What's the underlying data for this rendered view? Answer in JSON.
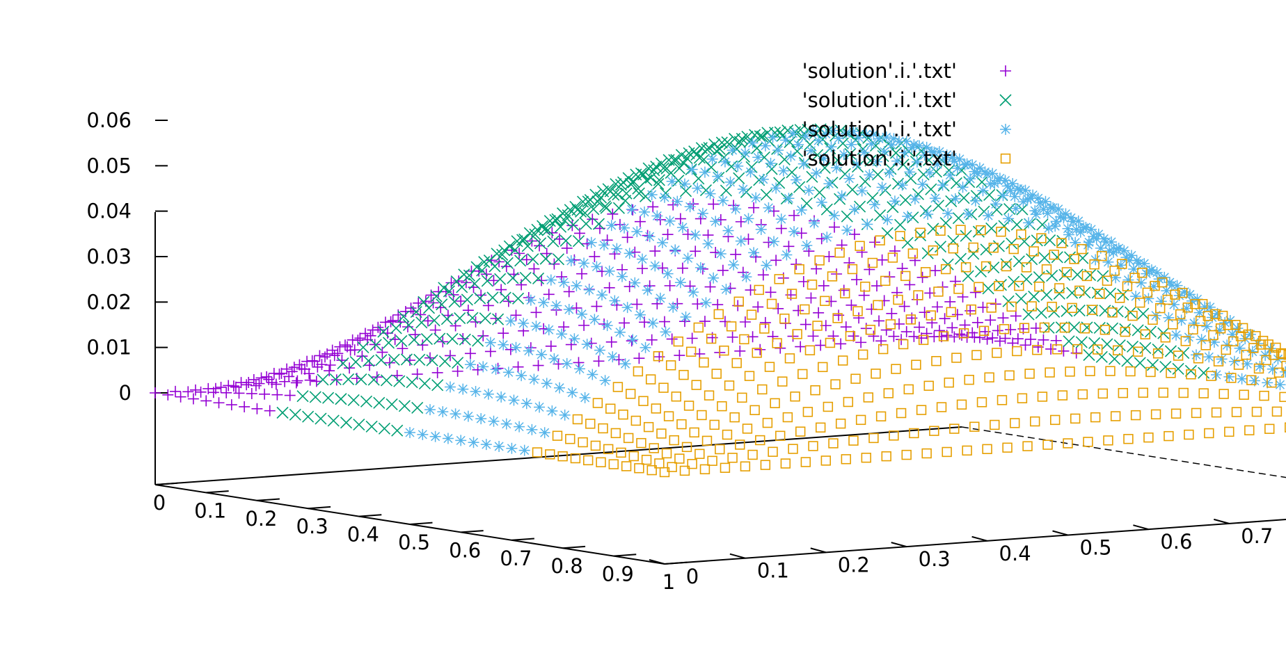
{
  "chart_data": {
    "type": "scatter",
    "plot3d": true,
    "title": "",
    "xlim": [
      0,
      1
    ],
    "ylim": [
      0,
      1
    ],
    "zlim": [
      0,
      0.06
    ],
    "x_ticks": [
      "0",
      "0.1",
      "0.2",
      "0.3",
      "0.4",
      "0.5",
      "0.6",
      "0.7",
      "0.8",
      "0.9",
      "1"
    ],
    "y_ticks": [
      "0",
      "0.1",
      "0.2",
      "0.3",
      "0.4",
      "0.5",
      "0.6",
      "0.7",
      "0.8",
      "0.9",
      "1"
    ],
    "z_ticks": [
      "0",
      "0.01",
      "0.02",
      "0.03",
      "0.04",
      "0.05",
      "0.06"
    ],
    "grid": false,
    "legend_position": "top-right",
    "surface": {
      "function": "z = 0.06 * sin(pi*x) * sin(pi*y)",
      "grid_step": 0.025,
      "peak_z": 0.06
    },
    "series": [
      {
        "name": "'solution'.i.'.txt'",
        "marker": "plus",
        "color": "#9400d3",
        "x_range": [
          0.0,
          0.25
        ]
      },
      {
        "name": "'solution'.i.'.txt'",
        "marker": "cross",
        "color": "#009e73",
        "x_range": [
          0.25,
          0.5
        ]
      },
      {
        "name": "'solution'.i.'.txt'",
        "marker": "star",
        "color": "#56b4e9",
        "x_range": [
          0.5,
          0.75
        ]
      },
      {
        "name": "'solution'.i.'.txt'",
        "marker": "square",
        "color": "#e69f00",
        "x_range": [
          0.75,
          1.0
        ]
      }
    ]
  }
}
